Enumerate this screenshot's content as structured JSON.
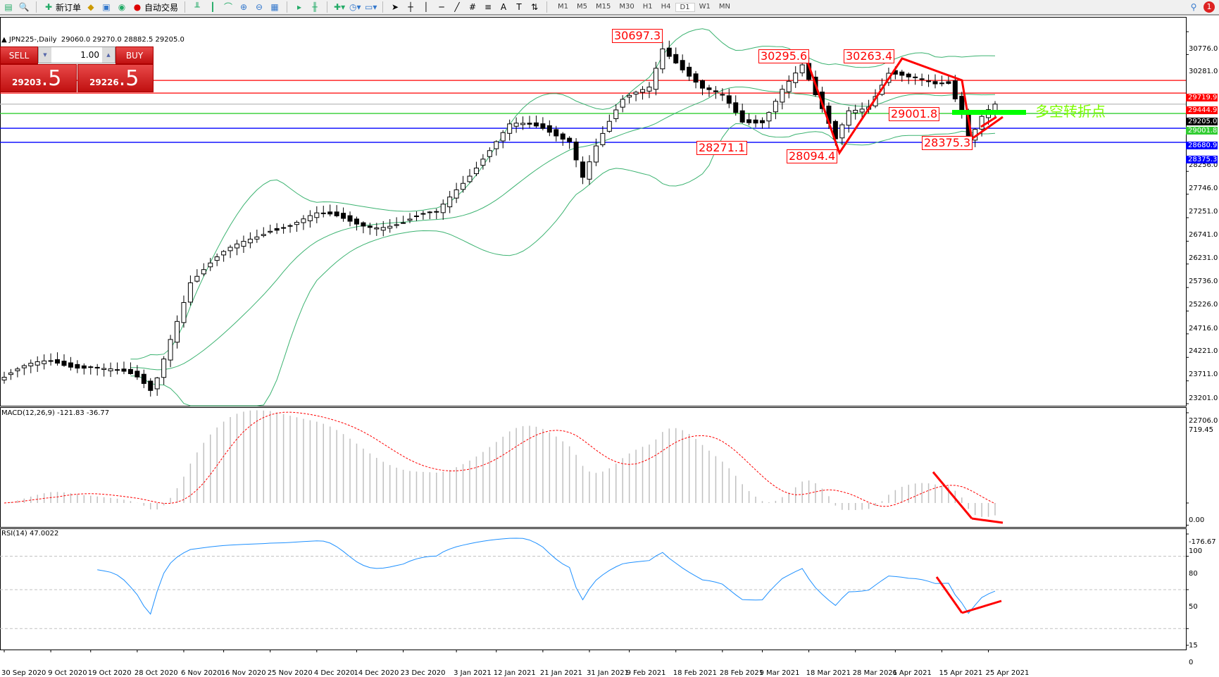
{
  "toolbar": {
    "new_order": "新订单",
    "auto_trading": "自动交易",
    "timeframes": [
      "M1",
      "M5",
      "M15",
      "M30",
      "H1",
      "H4",
      "D1",
      "W1",
      "MN"
    ],
    "active_timeframe": "D1",
    "notification_count": "1"
  },
  "header": {
    "symbol": "JPN225-,Daily",
    "open": "29060.0",
    "high": "29270.0",
    "low": "28882.5",
    "close": "29205.0"
  },
  "trade_panel": {
    "sell_label": "SELL",
    "buy_label": "BUY",
    "lot": "1.00",
    "sell_price_main": "29203",
    "sell_price_frac": ".5",
    "buy_price_main": "29226",
    "buy_price_frac": ".5"
  },
  "chart_data": {
    "type": "candlestick",
    "symbol": "JPN225-",
    "timeframe": "Daily",
    "last_bar": {
      "open": 29060.0,
      "high": 29270.0,
      "low": 28882.5,
      "close": 29205.0
    },
    "close_path": [
      [
        "2020-09-30",
        23280
      ],
      [
        "2020-10-09",
        23620
      ],
      [
        "2020-10-19",
        23570
      ],
      [
        "2020-10-28",
        23195
      ],
      [
        "2020-10-30",
        22980
      ],
      [
        "2020-11-02",
        23300
      ],
      [
        "2020-11-04",
        24200
      ],
      [
        "2020-11-09",
        25400
      ],
      [
        "2020-11-16",
        25900
      ],
      [
        "2020-11-25",
        26550
      ],
      [
        "2020-12-04",
        26750
      ],
      [
        "2020-12-14",
        26650
      ],
      [
        "2020-12-23",
        26600
      ],
      [
        "2020-12-30",
        26800
      ],
      [
        "2021-01-04",
        27400
      ],
      [
        "2021-01-08",
        28100
      ],
      [
        "2021-01-14",
        28700
      ],
      [
        "2021-01-21",
        28650
      ],
      [
        "2021-01-27",
        28500
      ],
      [
        "2021-01-29",
        27700
      ],
      [
        "2021-02-02",
        28300
      ],
      [
        "2021-02-08",
        29200
      ],
      [
        "2021-02-12",
        29600
      ],
      [
        "2021-02-16",
        30500
      ],
      [
        "2021-02-18",
        30200
      ],
      [
        "2021-02-24",
        29500
      ],
      [
        "2021-03-01",
        29300
      ],
      [
        "2021-03-04",
        28800
      ],
      [
        "2021-03-09",
        28900
      ],
      [
        "2021-03-12",
        29600
      ],
      [
        "2021-03-17",
        30000
      ],
      [
        "2021-03-19",
        29300
      ],
      [
        "2021-03-24",
        28400
      ],
      [
        "2021-03-26",
        29100
      ],
      [
        "2021-03-31",
        29250
      ],
      [
        "2021-04-05",
        29900
      ],
      [
        "2021-04-08",
        29700
      ],
      [
        "2021-04-14",
        29600
      ],
      [
        "2021-04-16",
        29700
      ],
      [
        "2021-04-20",
        29100
      ],
      [
        "2021-04-21",
        28500
      ],
      [
        "2021-04-23",
        29000
      ],
      [
        "2021-04-27",
        29205
      ]
    ],
    "price_ticks": [
      "30776.0",
      "30281.0",
      "28256.0",
      "27746.0",
      "27251.0",
      "26741.0",
      "26231.0",
      "25736.0",
      "25226.0",
      "24716.0",
      "24221.0",
      "23711.0",
      "23201.0",
      "22706.0"
    ],
    "date_ticks": [
      [
        "2020-09-30",
        "30 Sep 2020"
      ],
      [
        "2020-10-09",
        "9 Oct 2020"
      ],
      [
        "2020-10-19",
        "19 Oct 2020"
      ],
      [
        "2020-10-28",
        "28 Oct 2020"
      ],
      [
        "2020-11-06",
        "6 Nov 2020"
      ],
      [
        "2020-11-16",
        "16 Nov 2020"
      ],
      [
        "2020-11-25",
        "25 Nov 2020"
      ],
      [
        "2020-12-04",
        "4 Dec 2020"
      ],
      [
        "2020-12-14",
        "14 Dec 2020"
      ],
      [
        "2020-12-23",
        "23 Dec 2020"
      ],
      [
        "2021-01-03",
        "3 Jan 2021"
      ],
      [
        "2021-01-12",
        "12 Jan 2021"
      ],
      [
        "2021-01-21",
        "21 Jan 2021"
      ],
      [
        "2021-01-31",
        "31 Jan 2021"
      ],
      [
        "2021-02-09",
        "9 Feb 2021"
      ],
      [
        "2021-02-18",
        "18 Feb 2021"
      ],
      [
        "2021-02-28",
        "28 Feb 2021"
      ],
      [
        "2021-03-09",
        "9 Mar 2021"
      ],
      [
        "2021-03-18",
        "18 Mar 2021"
      ],
      [
        "2021-03-28",
        "28 Mar 2021"
      ],
      [
        "2021-04-06",
        "6 Apr 2021"
      ],
      [
        "2021-04-15",
        "15 Apr 2021"
      ],
      [
        "2021-04-25",
        "25 Apr 2021"
      ]
    ],
    "hlines": [
      {
        "price": 29719.9,
        "label": "29719.9",
        "color": "#ff0000"
      },
      {
        "price": 29444.9,
        "label": "29444.9",
        "color": "#ff0000"
      },
      {
        "price": 29205.0,
        "label": "29205.0",
        "color": "#c0c0c0",
        "tag_color": "#000000"
      },
      {
        "price": 29001.8,
        "label": "29001.8",
        "color": "#32cd32"
      },
      {
        "price": 28680.9,
        "label": "28680.9",
        "color": "#0000ff"
      },
      {
        "price": 28375.3,
        "label": "28375.3",
        "color": "#0000ff"
      }
    ],
    "annotations": [
      "30697.3",
      "30295.6",
      "30263.4",
      "29001.8",
      "28271.1",
      "28094.4",
      "28375.3"
    ],
    "note": "多空转折点",
    "bollinger": {
      "period": 20,
      "deviation": 2,
      "color": "#3cb371"
    },
    "macd": {
      "label": "MACD(12,26,9) -121.83 -36.77",
      "ticks": [
        "719.45",
        "0.00",
        "-176.67"
      ],
      "hist_color": "#c0c0c0",
      "signal_color": "#ff0000"
    },
    "rsi": {
      "label": "RSI(14) 47.0022",
      "ticks": [
        "100",
        "80",
        "50",
        "15",
        "0"
      ],
      "levels": [
        80,
        50,
        15
      ],
      "color": "#1e90ff"
    },
    "grid": false
  }
}
